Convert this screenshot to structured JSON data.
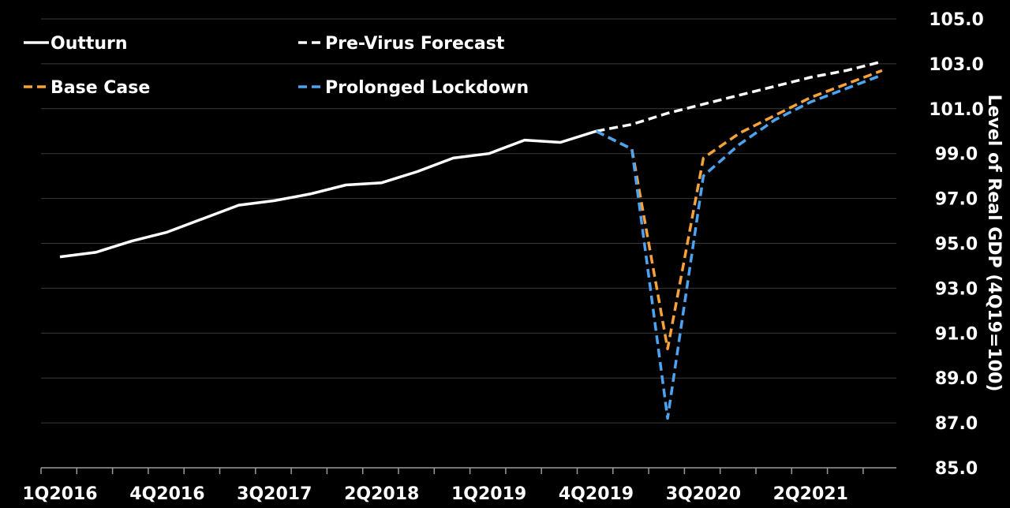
{
  "chart_data": {
    "type": "line",
    "ylabel": "Level of Real GDP (4Q19=100)",
    "ylim": [
      85.0,
      105.0
    ],
    "yticks": [
      "85.0",
      "87.0",
      "89.0",
      "91.0",
      "93.0",
      "95.0",
      "97.0",
      "99.0",
      "101.0",
      "103.0",
      "105.0"
    ],
    "x_categories": [
      "1Q2016",
      "2Q2016",
      "3Q2016",
      "4Q2016",
      "1Q2017",
      "2Q2017",
      "3Q2017",
      "4Q2017",
      "1Q2018",
      "2Q2018",
      "3Q2018",
      "4Q2018",
      "1Q2019",
      "2Q2019",
      "3Q2019",
      "4Q2019",
      "1Q2020",
      "2Q2020",
      "3Q2020",
      "4Q2020",
      "1Q2021",
      "2Q2021",
      "3Q2021",
      "4Q2021"
    ],
    "xtick_labels": [
      "1Q2016",
      "4Q2016",
      "3Q2017",
      "2Q2018",
      "1Q2019",
      "4Q2019",
      "3Q2020",
      "2Q2021"
    ],
    "grid": true,
    "legend_position": "top-left",
    "series": [
      {
        "name": "Outturn",
        "color": "#ffffff",
        "dash": "solid",
        "x": [
          "1Q2016",
          "2Q2016",
          "3Q2016",
          "4Q2016",
          "1Q2017",
          "2Q2017",
          "3Q2017",
          "4Q2017",
          "1Q2018",
          "2Q2018",
          "3Q2018",
          "4Q2018",
          "1Q2019",
          "2Q2019",
          "3Q2019",
          "4Q2019"
        ],
        "values": [
          94.4,
          94.6,
          95.1,
          95.5,
          96.1,
          96.7,
          96.9,
          97.2,
          97.6,
          97.7,
          98.2,
          98.8,
          99.0,
          99.6,
          99.5,
          100.0
        ]
      },
      {
        "name": "Pre-Virus Forecast",
        "color": "#ffffff",
        "dash": "dashed",
        "x": [
          "4Q2019",
          "1Q2020",
          "2Q2020",
          "3Q2020",
          "4Q2020",
          "1Q2021",
          "2Q2021",
          "3Q2021",
          "4Q2021"
        ],
        "values": [
          100.0,
          100.3,
          100.8,
          101.2,
          101.6,
          102.0,
          102.4,
          102.7,
          103.1
        ]
      },
      {
        "name": "Base Case",
        "color": "#f5a23c",
        "dash": "dashed",
        "x": [
          "4Q2019",
          "1Q2020",
          "2Q2020",
          "3Q2020",
          "4Q2020",
          "1Q2021",
          "2Q2021",
          "3Q2021",
          "4Q2021"
        ],
        "values": [
          100.0,
          99.2,
          90.3,
          98.8,
          99.9,
          100.7,
          101.5,
          102.1,
          102.7
        ]
      },
      {
        "name": "Prolonged Lockdown",
        "color": "#4ea3f0",
        "dash": "dashed",
        "x": [
          "4Q2019",
          "1Q2020",
          "2Q2020",
          "3Q2020",
          "4Q2020",
          "1Q2021",
          "2Q2021",
          "3Q2021",
          "4Q2021"
        ],
        "values": [
          100.0,
          99.2,
          87.2,
          98.0,
          99.4,
          100.5,
          101.3,
          101.9,
          102.5
        ]
      }
    ]
  }
}
